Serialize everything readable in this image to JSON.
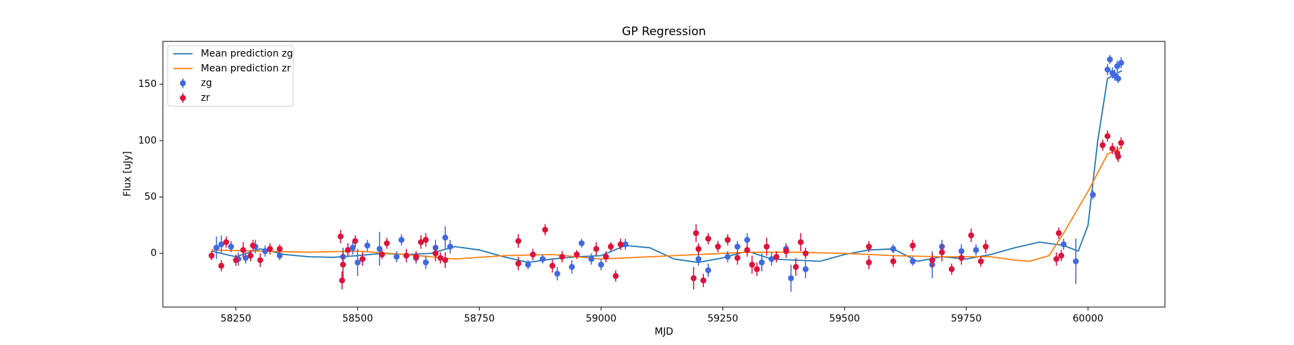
{
  "chart_data": {
    "type": "gp-regression",
    "title": "GP Regression",
    "x_label": "MJD",
    "y_label": "Flux [uJy]",
    "xlim": [
      58100,
      60158
    ],
    "ylim": [
      -47.6,
      188
    ],
    "xticks": [
      58250,
      58500,
      58750,
      59000,
      59250,
      59500,
      59750,
      60000
    ],
    "yticks": [
      0,
      50,
      100,
      150
    ],
    "legend": "upper left",
    "series": [
      {
        "name": "Mean prediction zg",
        "type": "line",
        "color": "#1f77b4",
        "x": [
          58200,
          58250,
          58300,
          58350,
          58400,
          58450,
          58500,
          58550,
          58600,
          58650,
          58700,
          58750,
          58800,
          58850,
          58900,
          58950,
          59000,
          59050,
          59100,
          59150,
          59200,
          59250,
          59300,
          59350,
          59400,
          59450,
          59500,
          59550,
          59600,
          59650,
          59700,
          59750,
          59800,
          59850,
          59900,
          59950,
          59980,
          60000,
          60020,
          60040,
          60060,
          60070
        ],
        "values": [
          2,
          -3,
          4,
          -1,
          -3,
          -3.5,
          -2,
          0,
          -1,
          0,
          6,
          3,
          -3,
          -8,
          -5,
          -3,
          -2,
          7,
          5,
          -5,
          -8,
          -4,
          2,
          -5,
          -6,
          -7,
          -1,
          3,
          4,
          -7,
          -3,
          -5,
          -1,
          5,
          10,
          7,
          2,
          25,
          100,
          155,
          160,
          162
        ]
      },
      {
        "name": "Mean prediction zr",
        "type": "line",
        "color": "#ff7f0e",
        "x": [
          58200,
          58300,
          58400,
          58500,
          58600,
          58700,
          58800,
          58900,
          59000,
          59100,
          59200,
          59300,
          59400,
          59500,
          59600,
          59700,
          59800,
          59850,
          59880,
          59920,
          59950,
          60000,
          60040,
          60070
        ],
        "values": [
          3,
          2,
          1,
          2,
          -1,
          -5,
          -2,
          -1,
          -5,
          -3,
          -1,
          1,
          1,
          0,
          -2,
          -3,
          -3,
          -6,
          -7,
          -2,
          18,
          55,
          88,
          94
        ]
      },
      {
        "name": "zg",
        "type": "errorbar",
        "color": "#4169e1",
        "x": [
          58210,
          58220,
          58240,
          58255,
          58270,
          58290,
          58310,
          58340,
          58470,
          58490,
          58500,
          58520,
          58545,
          58580,
          58590,
          58620,
          58640,
          58660,
          58680,
          58690,
          58850,
          58880,
          58910,
          58940,
          58960,
          58980,
          59000,
          59050,
          59200,
          59220,
          59260,
          59280,
          59300,
          59330,
          59350,
          59380,
          59390,
          59420,
          59600,
          59640,
          59680,
          59700,
          59740,
          59770,
          59950,
          59975,
          60010,
          60040,
          60045,
          60050,
          60055,
          60060,
          60062,
          60068
        ],
        "values": [
          5,
          8,
          6,
          -5,
          -4,
          6,
          2,
          -2,
          -3,
          5,
          -8,
          7,
          4,
          -3,
          12,
          -4,
          -8,
          5,
          14,
          6,
          -10,
          -5,
          -18,
          -12,
          9,
          -5,
          -10,
          8,
          -5,
          -15,
          -3,
          6,
          12,
          -8,
          -5,
          4,
          -22,
          -14,
          4,
          -7,
          -10,
          6,
          2,
          3,
          8,
          -7,
          52,
          163,
          172,
          160,
          158,
          166,
          155,
          169
        ],
        "errors": [
          10,
          8,
          5,
          6,
          5,
          6,
          5,
          4,
          8,
          6,
          12,
          5,
          15,
          5,
          5,
          5,
          6,
          7,
          10,
          6,
          4,
          4,
          6,
          6,
          4,
          5,
          5,
          5,
          6,
          6,
          5,
          5,
          6,
          8,
          6,
          5,
          12,
          8,
          4,
          4,
          12,
          6,
          6,
          5,
          5,
          20,
          4,
          5,
          4,
          5,
          5,
          5,
          4,
          5
        ]
      },
      {
        "name": "zr",
        "type": "errorbar",
        "color": "#dc143c",
        "x": [
          58200,
          58220,
          58230,
          58250,
          58265,
          58280,
          58285,
          58300,
          58320,
          58340,
          58465,
          58468,
          58470,
          58480,
          58495,
          58510,
          58550,
          58560,
          58600,
          58620,
          58630,
          58640,
          58660,
          58670,
          58680,
          58830,
          58830,
          58860,
          58885,
          58900,
          58920,
          58950,
          58990,
          59010,
          59020,
          59030,
          59040,
          59190,
          59195,
          59200,
          59210,
          59220,
          59240,
          59260,
          59280,
          59300,
          59310,
          59320,
          59340,
          59360,
          59380,
          59400,
          59410,
          59420,
          59550,
          59550,
          59600,
          59640,
          59680,
          59700,
          59720,
          59740,
          59760,
          59780,
          59790,
          59935,
          59940,
          59945,
          60030,
          60040,
          60050,
          60060,
          60062,
          60068
        ],
        "values": [
          -2,
          -11,
          10,
          -6,
          3,
          -2,
          7,
          -6,
          4,
          4,
          15,
          -24,
          -10,
          3,
          11,
          -5,
          -1,
          9,
          -2,
          -3,
          10,
          12,
          0,
          -4,
          -6,
          11,
          -9,
          -1,
          21,
          -11,
          -3,
          -1,
          4,
          -3,
          6,
          -20,
          8,
          -22,
          18,
          4,
          -24,
          13,
          6,
          12,
          -4,
          3,
          -10,
          -14,
          6,
          -3,
          2,
          -12,
          10,
          0,
          6,
          -8,
          -7,
          7,
          -6,
          1,
          -14,
          -4,
          16,
          -7,
          6,
          -5,
          18,
          -2,
          96,
          104,
          93,
          89,
          86,
          98
        ],
        "errors": [
          4,
          5,
          5,
          5,
          7,
          5,
          5,
          6,
          5,
          4,
          6,
          8,
          12,
          6,
          5,
          6,
          4,
          5,
          6,
          5,
          6,
          6,
          7,
          5,
          7,
          6,
          6,
          5,
          5,
          6,
          5,
          4,
          6,
          5,
          4,
          5,
          5,
          10,
          8,
          5,
          6,
          5,
          5,
          5,
          6,
          6,
          8,
          6,
          8,
          5,
          6,
          8,
          8,
          5,
          5,
          6,
          5,
          5,
          6,
          8,
          5,
          6,
          6,
          5,
          6,
          6,
          5,
          5,
          5,
          5,
          5,
          6,
          5,
          5
        ]
      }
    ]
  }
}
